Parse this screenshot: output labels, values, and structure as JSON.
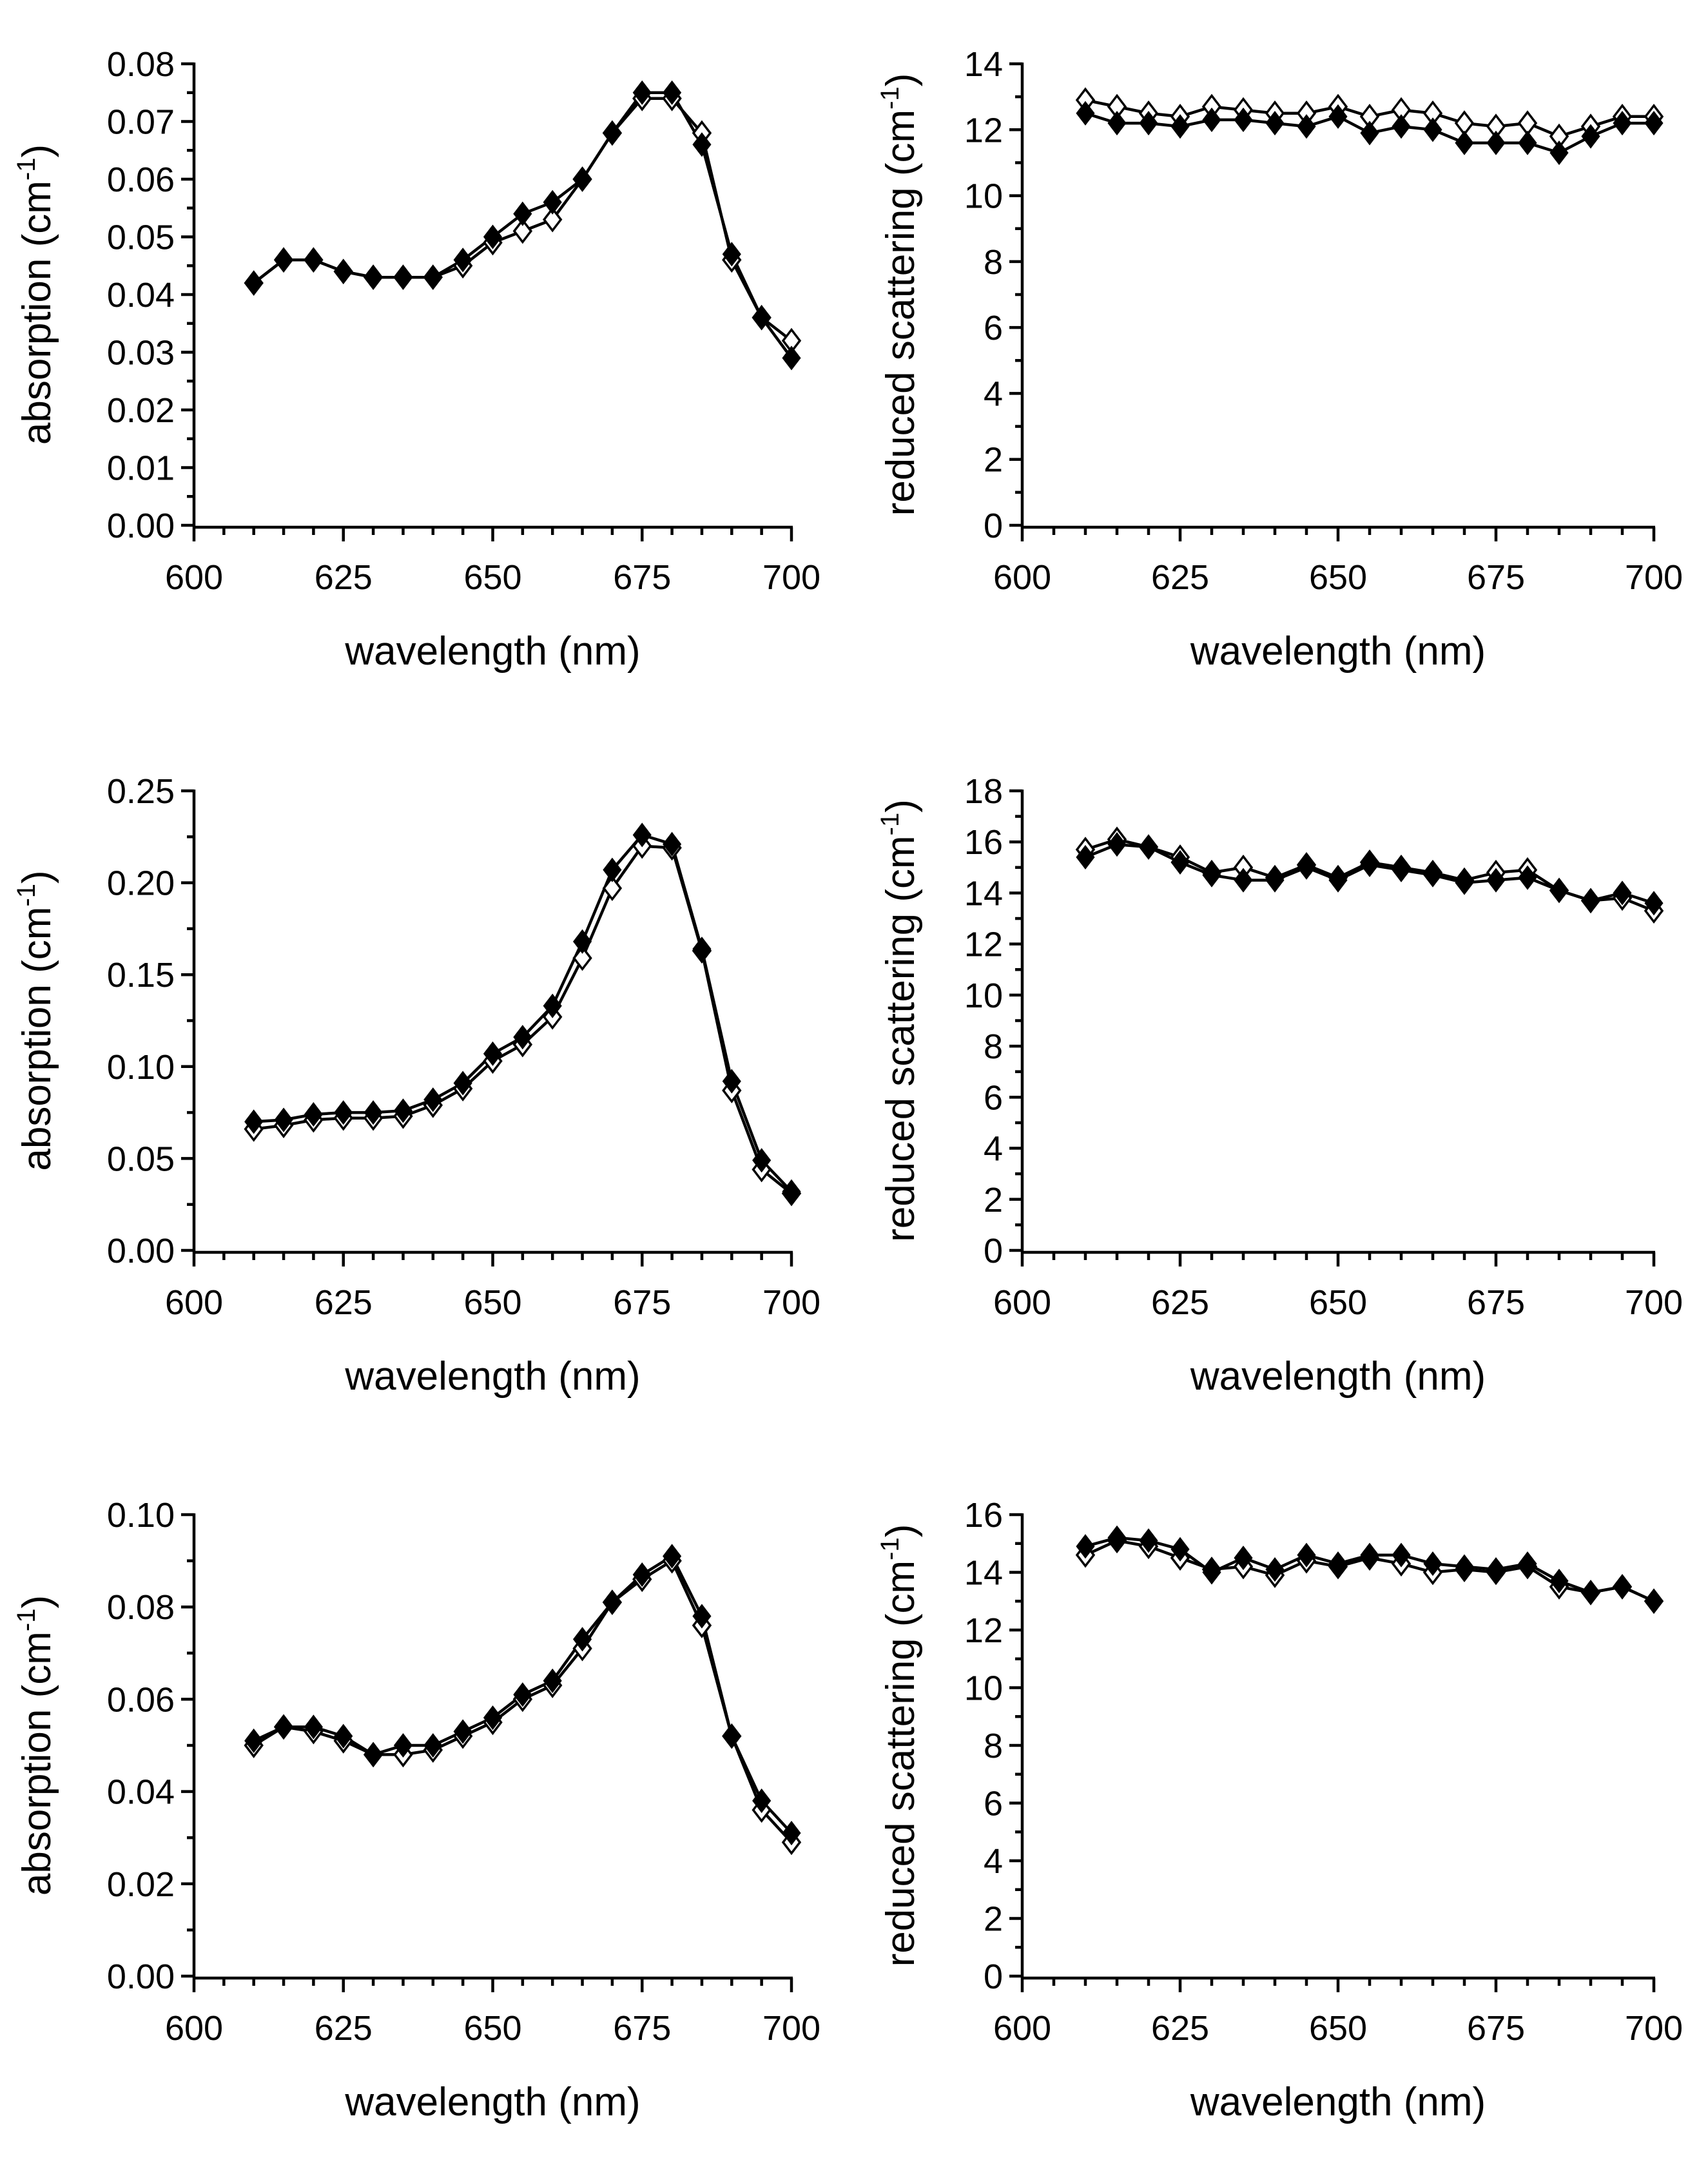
{
  "chart_data": [
    {
      "type": "line",
      "panel": "row-1-left",
      "xlabel": "wavelength (nm)",
      "ylabel": "absorption (cm",
      "ylabel_exponent": "-1",
      "ylabel_suffix": ")",
      "xlim": [
        600,
        700
      ],
      "ylim": [
        0,
        0.08
      ],
      "xticks": [
        "600",
        "625",
        "650",
        "675",
        "700"
      ],
      "yticks": [
        "0.00",
        "0.01",
        "0.02",
        "0.03",
        "0.04",
        "0.05",
        "0.06",
        "0.07",
        "0.08"
      ],
      "x": [
        610,
        615,
        620,
        625,
        630,
        635,
        640,
        645,
        650,
        655,
        660,
        665,
        670,
        675,
        680,
        685,
        690,
        695,
        700
      ],
      "series": [
        {
          "name": "open diamonds",
          "marker": "open",
          "values": [
            0.042,
            0.046,
            0.046,
            0.044,
            0.043,
            0.043,
            0.043,
            0.045,
            0.049,
            0.051,
            0.053,
            0.06,
            0.068,
            0.074,
            0.074,
            0.068,
            0.046,
            0.036,
            0.032
          ]
        },
        {
          "name": "filled diamonds",
          "marker": "filled",
          "values": [
            0.042,
            0.046,
            0.046,
            0.044,
            0.043,
            0.043,
            0.043,
            0.046,
            0.05,
            0.054,
            0.056,
            0.06,
            0.068,
            0.075,
            0.075,
            0.066,
            0.047,
            0.036,
            0.029
          ]
        }
      ]
    },
    {
      "type": "line",
      "panel": "row-1-right",
      "xlabel": "wavelength (nm)",
      "ylabel": "reduced scattering (cm",
      "ylabel_exponent": "-1",
      "ylabel_suffix": ")",
      "xlim": [
        600,
        700
      ],
      "ylim": [
        0,
        14
      ],
      "xticks": [
        "600",
        "625",
        "650",
        "675",
        "700"
      ],
      "yticks": [
        "0",
        "2",
        "4",
        "6",
        "8",
        "10",
        "12",
        "14"
      ],
      "x": [
        610,
        615,
        620,
        625,
        630,
        635,
        640,
        645,
        650,
        655,
        660,
        665,
        670,
        675,
        680,
        685,
        690,
        695,
        700
      ],
      "series": [
        {
          "name": "open diamonds",
          "marker": "open",
          "values": [
            12.9,
            12.7,
            12.5,
            12.4,
            12.7,
            12.6,
            12.5,
            12.5,
            12.7,
            12.4,
            12.6,
            12.5,
            12.2,
            12.1,
            12.2,
            11.8,
            12.1,
            12.4,
            12.4
          ]
        },
        {
          "name": "filled diamonds",
          "marker": "filled",
          "values": [
            12.5,
            12.2,
            12.2,
            12.1,
            12.3,
            12.3,
            12.2,
            12.1,
            12.4,
            11.9,
            12.1,
            12.0,
            11.6,
            11.6,
            11.6,
            11.3,
            11.8,
            12.2,
            12.2
          ]
        }
      ]
    },
    {
      "type": "line",
      "panel": "row-2-left",
      "xlabel": "wavelength (nm)",
      "ylabel": "absorption (cm",
      "ylabel_exponent": "-1",
      "ylabel_suffix": ")",
      "xlim": [
        600,
        700
      ],
      "ylim": [
        0,
        0.25
      ],
      "xticks": [
        "600",
        "625",
        "650",
        "675",
        "700"
      ],
      "yticks": [
        "0.00",
        "0.05",
        "0.10",
        "0.15",
        "0.20",
        "0.25"
      ],
      "x": [
        610,
        615,
        620,
        625,
        630,
        635,
        640,
        645,
        650,
        655,
        660,
        665,
        670,
        675,
        680,
        685,
        690,
        695,
        700
      ],
      "series": [
        {
          "name": "open diamonds",
          "marker": "open",
          "values": [
            0.066,
            0.068,
            0.071,
            0.072,
            0.072,
            0.073,
            0.079,
            0.088,
            0.103,
            0.112,
            0.127,
            0.159,
            0.197,
            0.22,
            0.219,
            0.163,
            0.087,
            0.044,
            0.031
          ]
        },
        {
          "name": "filled diamonds",
          "marker": "filled",
          "values": [
            0.07,
            0.071,
            0.074,
            0.075,
            0.075,
            0.076,
            0.082,
            0.091,
            0.107,
            0.116,
            0.133,
            0.168,
            0.207,
            0.226,
            0.221,
            0.164,
            0.092,
            0.049,
            0.032
          ]
        }
      ]
    },
    {
      "type": "line",
      "panel": "row-2-right",
      "xlabel": "wavelength (nm)",
      "ylabel": "reduced scattering (cm",
      "ylabel_exponent": "-1",
      "ylabel_suffix": ")",
      "xlim": [
        600,
        700
      ],
      "ylim": [
        0,
        18
      ],
      "xticks": [
        "600",
        "625",
        "650",
        "675",
        "700"
      ],
      "yticks": [
        "0",
        "2",
        "4",
        "6",
        "8",
        "10",
        "12",
        "14",
        "16",
        "18"
      ],
      "x": [
        610,
        615,
        620,
        625,
        630,
        635,
        640,
        645,
        650,
        655,
        660,
        665,
        670,
        675,
        680,
        685,
        690,
        695,
        700
      ],
      "series": [
        {
          "name": "open diamonds",
          "marker": "open",
          "values": [
            15.7,
            16.1,
            15.8,
            15.4,
            14.8,
            15.0,
            14.6,
            15.1,
            14.6,
            15.2,
            15.0,
            14.8,
            14.5,
            14.8,
            14.9,
            14.1,
            13.7,
            13.8,
            13.3
          ]
        },
        {
          "name": "filled diamonds",
          "marker": "filled",
          "values": [
            15.4,
            15.9,
            15.8,
            15.2,
            14.7,
            14.5,
            14.5,
            15.0,
            14.5,
            15.1,
            14.9,
            14.7,
            14.4,
            14.5,
            14.6,
            14.1,
            13.7,
            14.0,
            13.6
          ]
        }
      ]
    },
    {
      "type": "line",
      "panel": "row-3-left",
      "xlabel": "wavelength (nm)",
      "ylabel": "absorption (cm",
      "ylabel_exponent": "-1",
      "ylabel_suffix": ")",
      "xlim": [
        600,
        700
      ],
      "ylim": [
        0,
        0.1
      ],
      "xticks": [
        "600",
        "625",
        "650",
        "675",
        "700"
      ],
      "yticks": [
        "0.00",
        "0.02",
        "0.04",
        "0.06",
        "0.08",
        "0.10"
      ],
      "x": [
        610,
        615,
        620,
        625,
        630,
        635,
        640,
        645,
        650,
        655,
        660,
        665,
        670,
        675,
        680,
        685,
        690,
        695,
        700
      ],
      "series": [
        {
          "name": "open diamonds",
          "marker": "open",
          "values": [
            0.05,
            0.054,
            0.053,
            0.051,
            0.048,
            0.048,
            0.049,
            0.052,
            0.055,
            0.06,
            0.063,
            0.071,
            0.081,
            0.086,
            0.09,
            0.076,
            0.052,
            0.036,
            0.029
          ]
        },
        {
          "name": "filled diamonds",
          "marker": "filled",
          "values": [
            0.051,
            0.054,
            0.054,
            0.052,
            0.048,
            0.05,
            0.05,
            0.053,
            0.056,
            0.061,
            0.064,
            0.073,
            0.081,
            0.087,
            0.091,
            0.078,
            0.052,
            0.038,
            0.031
          ]
        }
      ]
    },
    {
      "type": "line",
      "panel": "row-3-right",
      "xlabel": "wavelength (nm)",
      "ylabel": "reduced scattering (cm",
      "ylabel_exponent": "-1",
      "ylabel_suffix": ")",
      "xlim": [
        600,
        700
      ],
      "ylim": [
        0,
        16
      ],
      "xticks": [
        "600",
        "625",
        "650",
        "675",
        "700"
      ],
      "yticks": [
        "0",
        "2",
        "4",
        "6",
        "8",
        "10",
        "12",
        "14",
        "16"
      ],
      "x": [
        610,
        615,
        620,
        625,
        630,
        635,
        640,
        645,
        650,
        655,
        660,
        665,
        670,
        675,
        680,
        685,
        690,
        695,
        700
      ],
      "series": [
        {
          "name": "open diamonds",
          "marker": "open",
          "values": [
            14.6,
            15.1,
            14.9,
            14.5,
            14.1,
            14.2,
            13.9,
            14.4,
            14.2,
            14.5,
            14.3,
            14.0,
            14.1,
            14.0,
            14.2,
            13.5,
            13.3,
            13.5,
            13.0
          ]
        },
        {
          "name": "filled diamonds",
          "marker": "filled",
          "values": [
            14.9,
            15.2,
            15.1,
            14.8,
            14.0,
            14.5,
            14.1,
            14.6,
            14.3,
            14.6,
            14.6,
            14.3,
            14.2,
            14.1,
            14.3,
            13.7,
            13.3,
            13.5,
            13.0
          ]
        }
      ]
    }
  ]
}
